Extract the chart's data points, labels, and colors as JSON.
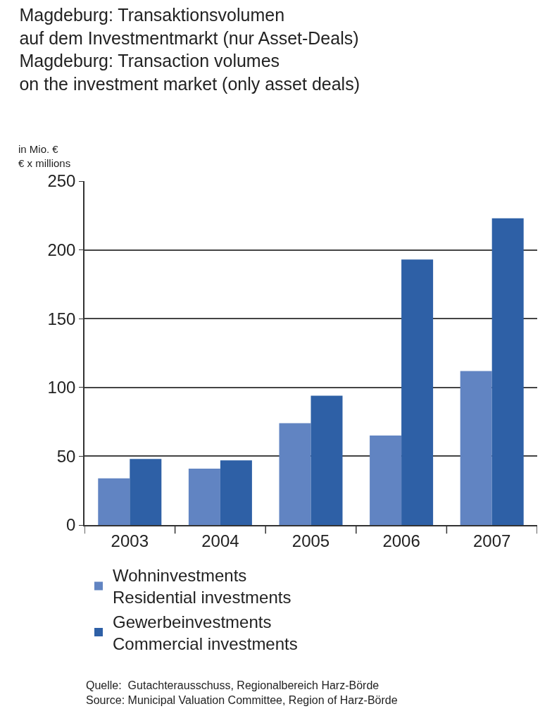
{
  "chart_data": {
    "type": "bar",
    "title": "Magdeburg: Transaktionsvolumen\nauf dem Investmentmarkt (nur Asset-Deals)\nMagdeburg: Transaction volumes\non the investment market (only asset deals)",
    "ylabel": "in Mio. €\n€ x millions",
    "categories": [
      "2003",
      "2004",
      "2005",
      "2006",
      "2007"
    ],
    "series": [
      {
        "name": "Wohninvestments\nResidential investments",
        "color": "#6184c2",
        "values": [
          34,
          41,
          74,
          65,
          112
        ]
      },
      {
        "name": "Gewerbeinvestments\nCommercial investments",
        "color": "#2e60a6",
        "values": [
          48,
          47,
          94,
          193,
          223
        ]
      }
    ],
    "ylim": [
      0,
      250
    ],
    "yticks": [
      0,
      50,
      100,
      150,
      200,
      250
    ],
    "grid": "y",
    "legend": "bottom",
    "annotations": [
      "Quelle:  Gutachterausschuss, Regionalbereich Harz-Börde\nSource: Municipal Valuation Committee, Region of Harz-Börde"
    ]
  }
}
